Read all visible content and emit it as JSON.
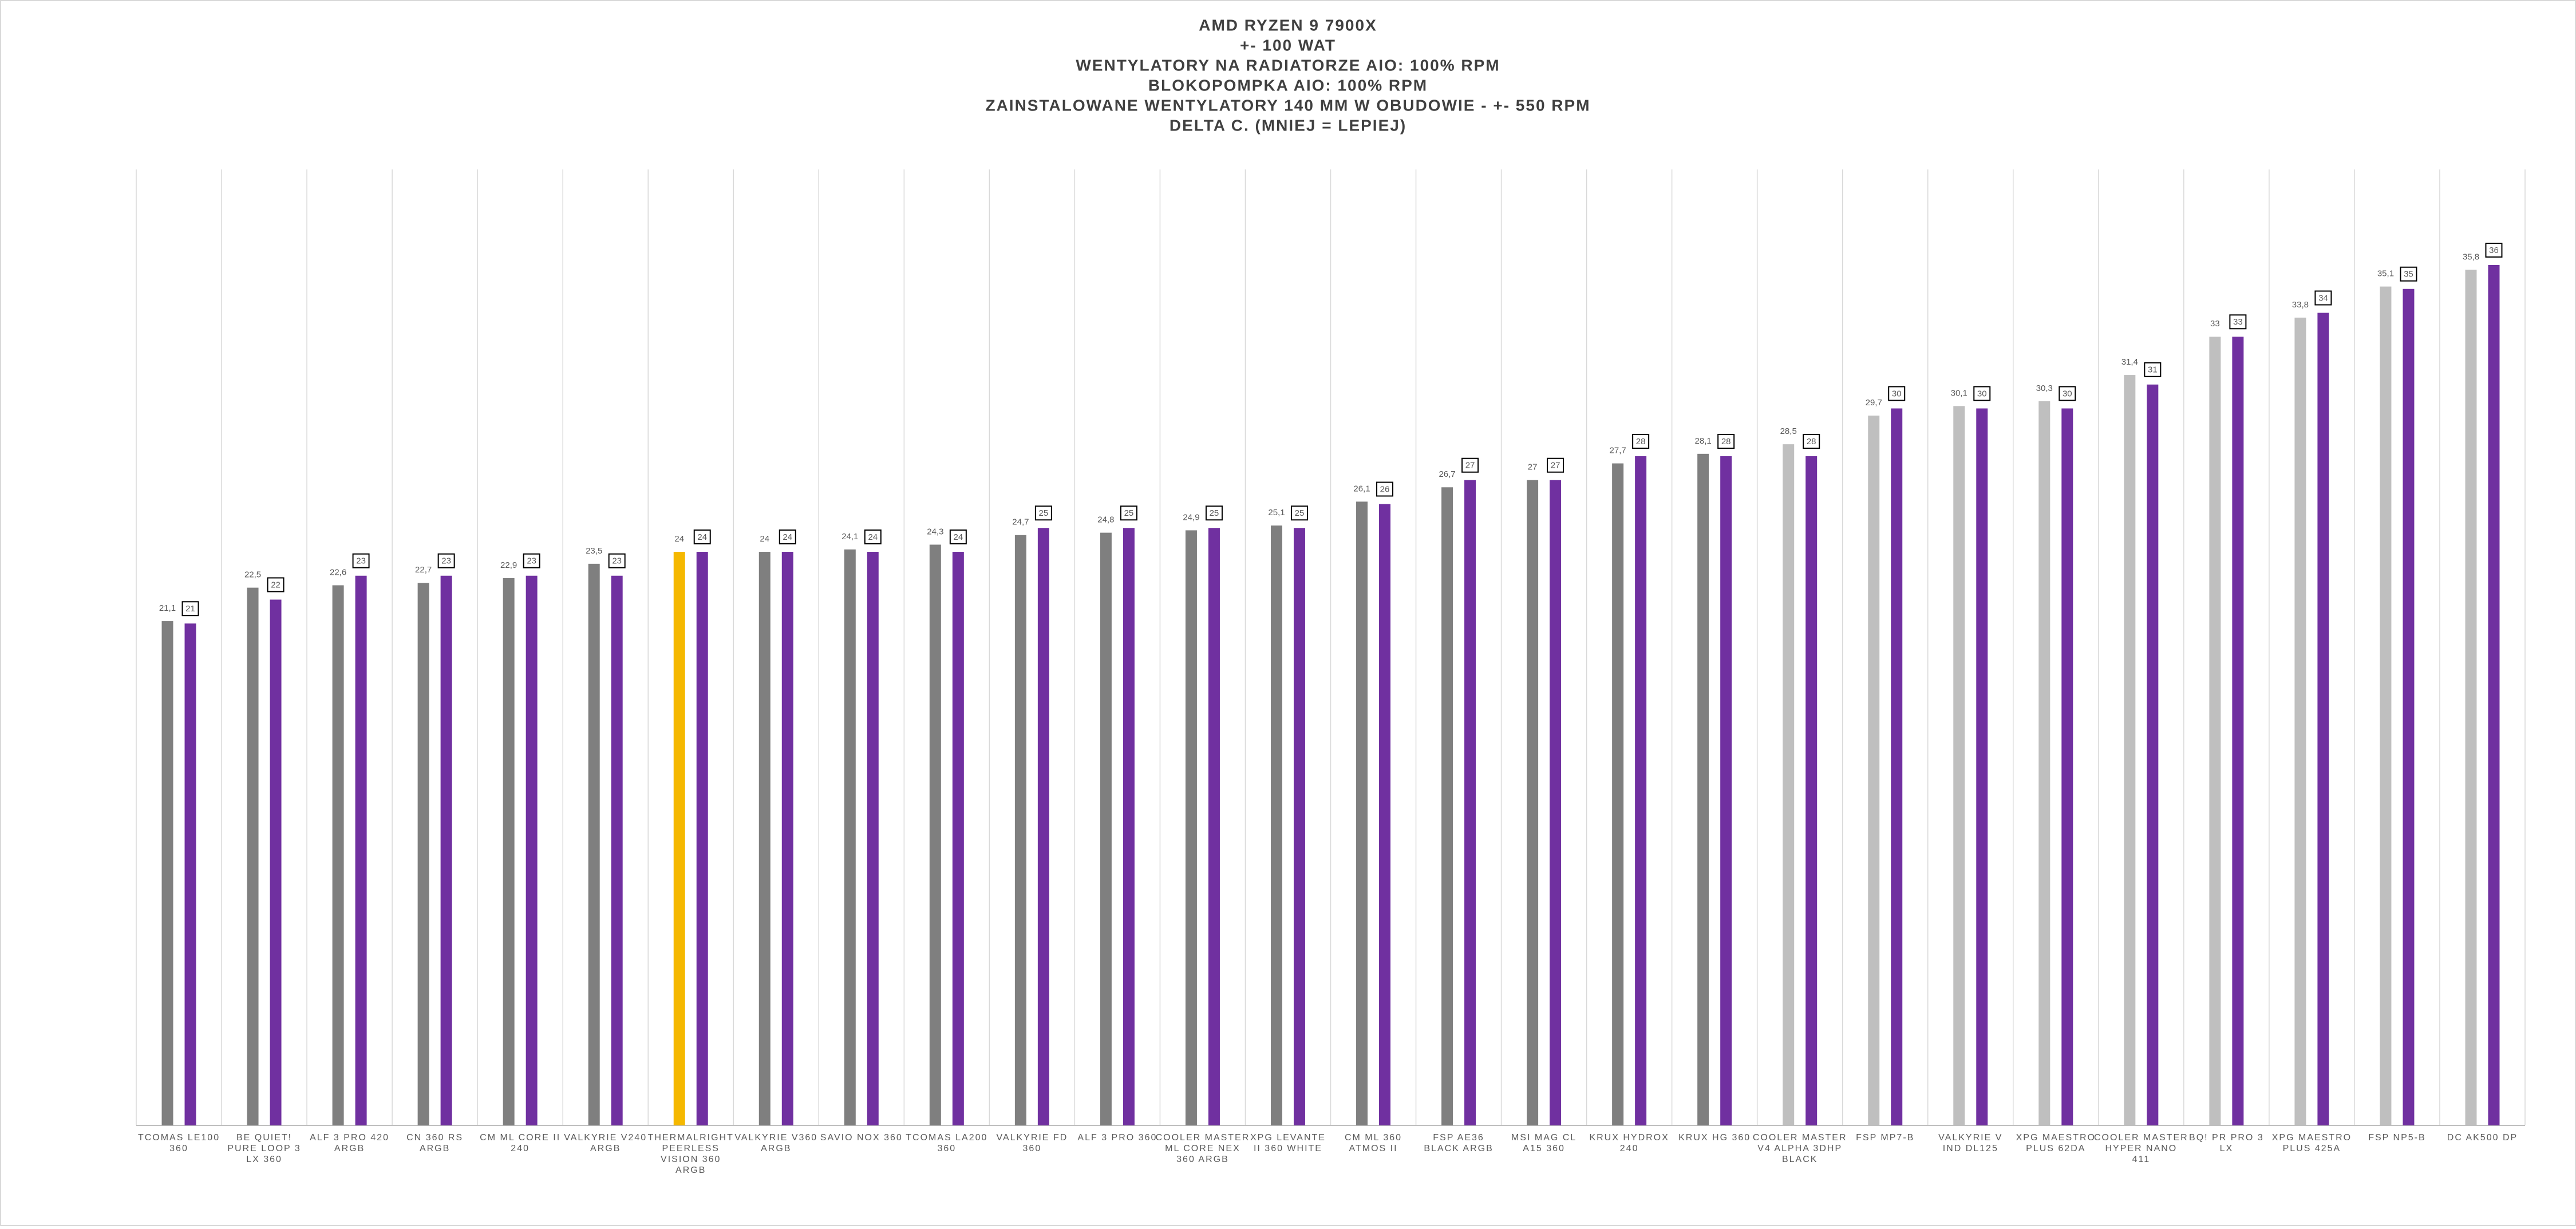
{
  "chart_data": {
    "type": "bar",
    "title": [
      "AMD RYZEN 9 7900X",
      "+- 100 WAT",
      "WENTYLATORY NA RADIATORZE AIO: 100% RPM",
      "BLOKOPOMPKA AIO: 100% RPM",
      "ZAINSTALOWANE WENTYLATORY 140 MM W OBUDOWIE - +- 550 RPM",
      "DELTA C. (MNIEJ = LEPIEJ)"
    ],
    "categories": [
      "TCOMAS LE100 360",
      "BE QUIET! PURE LOOP 3 LX 360",
      "ALF 3 PRO 420 ARGB",
      "CN 360 RS ARGB",
      "CM ML CORE II 240",
      "VALKYRIE V240 ARGB",
      "THERMALRIGHT PEERLESS VISION 360 ARGB",
      "VALKYRIE V360 ARGB",
      "SAVIO NOX 360",
      "TCOMAS LA200 360",
      "VALKYRIE FD 360",
      "ALF 3 PRO 360",
      "COOLER MASTER ML CORE NEX 360 ARGB",
      "XPG LEVANTE II 360 WHITE",
      "CM ML 360 ATMOS II",
      "FSP AE36 BLACK ARGB",
      "MSI MAG CL A15 360",
      "KRUX HYDROX 240",
      "KRUX HG 360",
      "COOLER MASTER V4 ALPHA 3DHP BLACK",
      "FSP MP7-B",
      "VALKYRIE V IND DL125",
      "XPG MAESTRO PLUS 62DA",
      "COOLER MASTER HYPER NANO 411",
      "BQ! PR PRO 3 LX",
      "XPG MAESTRO PLUS 425A",
      "FSP NP5-B",
      "DC AK500 DP"
    ],
    "series": [
      {
        "colors": [
          "#7f7f7f",
          "#7f7f7f",
          "#7f7f7f",
          "#7f7f7f",
          "#7f7f7f",
          "#7f7f7f",
          "#f5b800",
          "#7f7f7f",
          "#7f7f7f",
          "#7f7f7f",
          "#7f7f7f",
          "#7f7f7f",
          "#7f7f7f",
          "#7f7f7f",
          "#7f7f7f",
          "#7f7f7f",
          "#7f7f7f",
          "#7f7f7f",
          "#7f7f7f",
          "#bfbfbf",
          "#bfbfbf",
          "#bfbfbf",
          "#bfbfbf",
          "#bfbfbf",
          "#bfbfbf",
          "#bfbfbf",
          "#bfbfbf",
          "#bfbfbf"
        ],
        "values": [
          21.1,
          22.5,
          22.6,
          22.7,
          22.9,
          23.5,
          24,
          24,
          24.1,
          24.3,
          24.7,
          24.8,
          24.9,
          25.1,
          26.1,
          26.7,
          27,
          27.7,
          28.1,
          28.5,
          29.7,
          30.1,
          30.3,
          31.4,
          33,
          33.8,
          35.1,
          35.8
        ],
        "value_labels": [
          "21,1",
          "22,5",
          "22,6",
          "22,7",
          "22,9",
          "23,5",
          "24",
          "24",
          "24,1",
          "24,3",
          "24,7",
          "24,8",
          "24,9",
          "25,1",
          "26,1",
          "26,7",
          "27",
          "27,7",
          "28,1",
          "28,5",
          "29,7",
          "30,1",
          "30,3",
          "31,4",
          "33",
          "33,8",
          "35,1",
          "35,8"
        ]
      },
      {
        "color": "#7030a0",
        "values": [
          21,
          22,
          23,
          23,
          23,
          23,
          24,
          24,
          24,
          24,
          25,
          25,
          25,
          25,
          26,
          27,
          27,
          28,
          28,
          28,
          30,
          30,
          30,
          31,
          33,
          34,
          35,
          36
        ]
      }
    ],
    "ylim": [
      0,
      40
    ]
  }
}
